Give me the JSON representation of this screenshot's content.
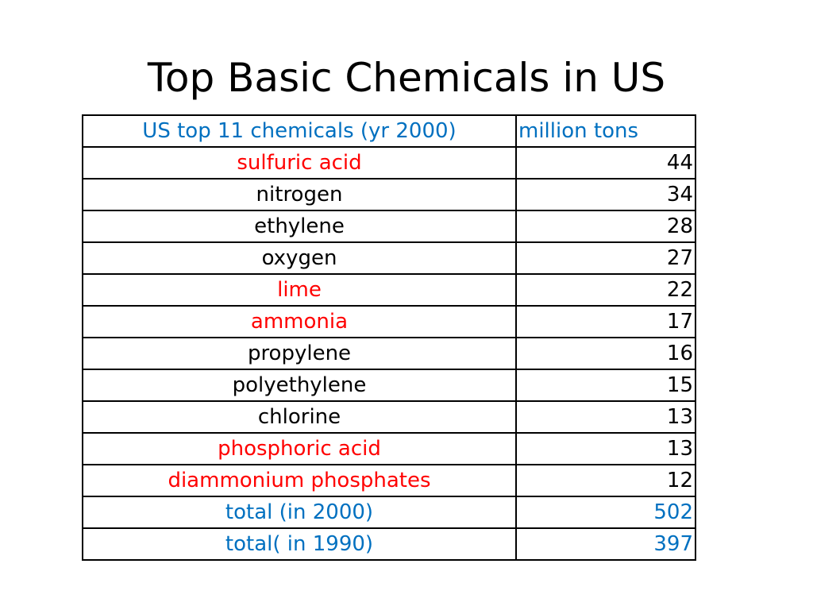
{
  "title": "Top Basic Chemicals in US",
  "table": {
    "headers": [
      "US top 11 chemicals (yr 2000)",
      "million tons"
    ],
    "rows": [
      {
        "name": "sulfuric acid",
        "value": "44",
        "color": "#ff0000"
      },
      {
        "name": "nitrogen",
        "value": "34",
        "color": "#000000"
      },
      {
        "name": "ethylene",
        "value": "28",
        "color": "#000000"
      },
      {
        "name": "oxygen",
        "value": "27",
        "color": "#000000"
      },
      {
        "name": "lime",
        "value": "22",
        "color": "#ff0000"
      },
      {
        "name": "ammonia",
        "value": "17",
        "color": "#ff0000"
      },
      {
        "name": "propylene",
        "value": "16",
        "color": "#000000"
      },
      {
        "name": "polyethylene",
        "value": "15",
        "color": "#000000"
      },
      {
        "name": "chlorine",
        "value": "13",
        "color": "#000000"
      },
      {
        "name": "phosphoric acid",
        "value": "13",
        "color": "#ff0000"
      },
      {
        "name": "diammonium phosphates",
        "value": "12",
        "color": "#ff0000"
      }
    ],
    "totals": [
      {
        "name": "total (in 2000)",
        "value": "502"
      },
      {
        "name": "total( in 1990)",
        "value": "397"
      }
    ]
  },
  "colors": {
    "header_text": "#0070c0",
    "highlight_text": "#ff0000",
    "normal_text": "#000000",
    "total_text": "#0070c0"
  }
}
